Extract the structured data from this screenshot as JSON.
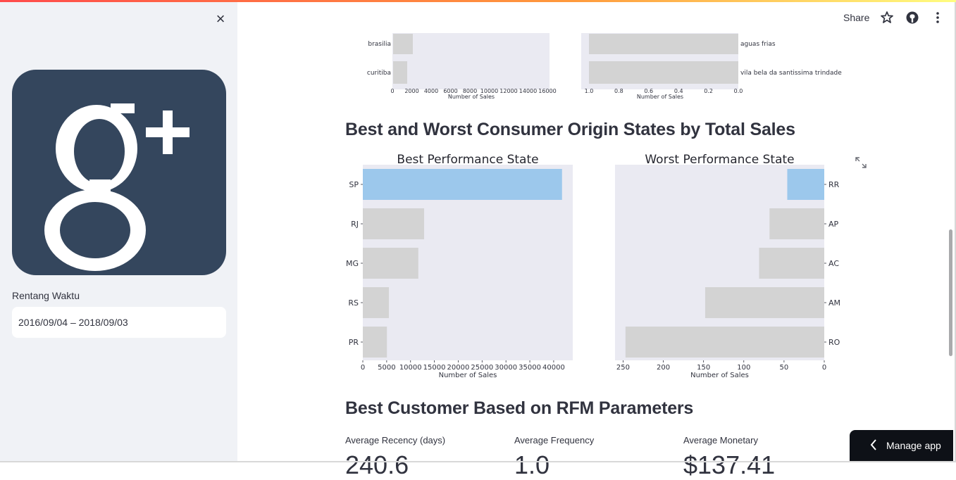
{
  "sidebar": {
    "close_label": "×",
    "date_label": "Rentang Waktu",
    "date_value": "2016/09/04 – 2018/09/03",
    "logo_icon": "google-plus-logo",
    "logo_color": "#34465d"
  },
  "header": {
    "share": "Share",
    "icons": [
      "star-icon",
      "github-icon",
      "more-vert-icon"
    ]
  },
  "top_chart": {
    "left": {
      "categories": [
        "brasilia",
        "curitiba"
      ],
      "ticks": [
        "0",
        "2000",
        "4000",
        "6000",
        "8000",
        "10000",
        "12000",
        "14000",
        "16000"
      ],
      "xlabel": "Number of Sales"
    },
    "right": {
      "categories": [
        "aguas frias",
        "vila bela da santissima trindade"
      ],
      "ticks": [
        "1.0",
        "0.8",
        "0.6",
        "0.4",
        "0.2",
        "0.0"
      ],
      "xlabel": "Number of Sales"
    }
  },
  "section_states": {
    "title": "Best and Worst Consumer Origin States by Total Sales"
  },
  "section_rfm": {
    "title": "Best Customer Based on RFM Parameters",
    "metrics": [
      {
        "label": "Average Recency (days)",
        "value": "240.6"
      },
      {
        "label": "Average Frequency",
        "value": "1.0"
      },
      {
        "label": "Average Monetary",
        "value": "$137.41"
      }
    ]
  },
  "manage_app": "Manage app",
  "colors": {
    "highlight": "#9cc8ec",
    "bar": "#d3d3d3",
    "plot_bg": "#eaeaf2"
  },
  "chart_data": [
    {
      "type": "bar",
      "orientation": "horizontal",
      "title": "Best Performance State",
      "categories": [
        "SP",
        "RJ",
        "MG",
        "RS",
        "PR"
      ],
      "values": [
        41750,
        12850,
        11630,
        5470,
        5050
      ],
      "xlabel": "Number of Sales",
      "ylabel": "",
      "xlim": [
        0,
        44000
      ],
      "ticks": [
        0,
        5000,
        10000,
        15000,
        20000,
        25000,
        30000,
        35000,
        40000
      ],
      "highlight": "SP"
    },
    {
      "type": "bar",
      "orientation": "horizontal",
      "title": "Worst Performance State",
      "categories": [
        "RR",
        "AP",
        "AC",
        "AM",
        "RO"
      ],
      "values": [
        46,
        68,
        81,
        148,
        247
      ],
      "xlabel": "Number of Sales",
      "ylabel": "",
      "xlim": [
        260,
        0
      ],
      "inverted_x": true,
      "ticks": [
        250,
        200,
        150,
        100,
        50,
        0
      ],
      "highlight": "RR"
    }
  ]
}
